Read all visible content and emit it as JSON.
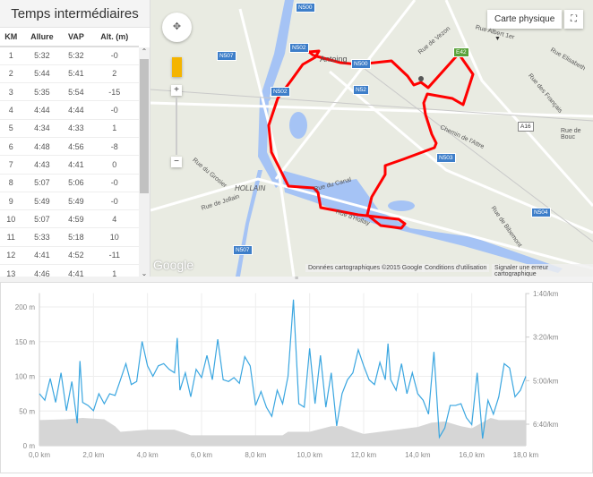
{
  "splits": {
    "title": "Temps intermédiaires",
    "columns": [
      "KM",
      "Allure",
      "VAP",
      "Alt. (m)"
    ],
    "rows": [
      [
        "1",
        "5:32",
        "5:32",
        "-0"
      ],
      [
        "2",
        "5:44",
        "5:41",
        "2"
      ],
      [
        "3",
        "5:35",
        "5:54",
        "-15"
      ],
      [
        "4",
        "4:44",
        "4:44",
        "-0"
      ],
      [
        "5",
        "4:34",
        "4:33",
        "1"
      ],
      [
        "6",
        "4:48",
        "4:56",
        "-8"
      ],
      [
        "7",
        "4:43",
        "4:41",
        "0"
      ],
      [
        "8",
        "5:07",
        "5:06",
        "-0"
      ],
      [
        "9",
        "5:49",
        "5:49",
        "-0"
      ],
      [
        "10",
        "5:07",
        "4:59",
        "4"
      ],
      [
        "11",
        "5:33",
        "5:18",
        "10"
      ],
      [
        "12",
        "4:41",
        "4:52",
        "-11"
      ],
      [
        "13",
        "4:46",
        "4:41",
        "1"
      ]
    ]
  },
  "map": {
    "type_button": "Carte physique",
    "labels": [
      "Antoing",
      "HOLLAIN",
      "Rue du Canal",
      "Rue de Jollain",
      "Rue du Grosier",
      "Rue d'Hollay",
      "Rue de Vezon",
      "Rue Albert 1er",
      "Rue Elisabeth",
      "Rue des Français",
      "Chemin de l'Attre",
      "Rue de Bouc",
      "Rue de Bibemont"
    ],
    "shields": [
      "N500",
      "N502",
      "N507",
      "N52",
      "N503",
      "N504",
      "E42",
      "A16",
      "N507",
      "N502",
      "N500"
    ],
    "attribution": "Données cartographiques ©2015 Google",
    "terms": "Conditions d'utilisation",
    "report": "Signaler une erreur cartographique",
    "logo": "Google",
    "route_color": "#ff0000"
  },
  "chart_data": {
    "type": "area+line",
    "x_ticks": [
      "0,0 km",
      "2,0 km",
      "4,0 km",
      "6,0 km",
      "8,0 km",
      "10,0 km",
      "12,0 km",
      "14,0 km",
      "16,0 km",
      "18,0 km"
    ],
    "y_left_ticks": [
      "0 m",
      "50 m",
      "100 m",
      "150 m",
      "200 m"
    ],
    "y_right_ticks": [
      "1:40/km",
      "3:20/km",
      "5:00/km",
      "6:40/km"
    ],
    "xlim": [
      0,
      18
    ],
    "ylim_left": [
      0,
      220
    ],
    "series": [
      {
        "kind": "altitude_area",
        "color": "#d6d6d6",
        "x": [
          0,
          1,
          1.6,
          2.4,
          2.8,
          3.0,
          4.0,
          5.0,
          5.6,
          6.5,
          8.0,
          9.0,
          9.2,
          10.0,
          10.8,
          11.2,
          11.6,
          12.0,
          13.0,
          14.0,
          14.5,
          15.0,
          15.6,
          16.0,
          16.7,
          17.0,
          18.0
        ],
        "y": [
          37,
          38,
          40,
          38,
          28,
          20,
          23,
          23,
          15,
          15,
          15,
          15,
          20,
          20,
          28,
          28,
          22,
          17,
          22,
          27,
          33,
          35,
          28,
          25,
          40,
          37,
          37
        ]
      },
      {
        "kind": "pace_line_s_per_km",
        "color": "#3aa6e0",
        "x": [
          0,
          0.2,
          0.4,
          0.6,
          0.8,
          1.0,
          1.2,
          1.4,
          1.5,
          1.6,
          1.8,
          2.0,
          2.2,
          2.4,
          2.6,
          2.8,
          3.0,
          3.2,
          3.4,
          3.6,
          3.8,
          4.0,
          4.2,
          4.4,
          4.6,
          4.8,
          5.0,
          5.1,
          5.2,
          5.4,
          5.6,
          5.8,
          6.0,
          6.2,
          6.4,
          6.6,
          6.8,
          7.0,
          7.2,
          7.4,
          7.6,
          7.8,
          8.0,
          8.2,
          8.4,
          8.6,
          8.8,
          9.0,
          9.2,
          9.4,
          9.6,
          9.8,
          10.0,
          10.2,
          10.4,
          10.6,
          10.8,
          11.0,
          11.2,
          11.4,
          11.6,
          11.8,
          12.0,
          12.2,
          12.4,
          12.6,
          12.8,
          12.9,
          13.0,
          13.2,
          13.4,
          13.6,
          13.8,
          14.0,
          14.2,
          14.4,
          14.6,
          14.8,
          15.0,
          15.2,
          15.4,
          15.6,
          15.8,
          16.0,
          16.2,
          16.4,
          16.6,
          16.8,
          17.0,
          17.2,
          17.4,
          17.6,
          17.8,
          18.0
        ],
        "y": [
          330,
          345,
          295,
          350,
          282,
          369,
          302,
          398,
          255,
          350,
          357,
          369,
          330,
          353,
          330,
          334,
          298,
          261,
          309,
          302,
          210,
          266,
          290,
          266,
          261,
          274,
          282,
          202,
          322,
          282,
          337,
          274,
          293,
          242,
          298,
          205,
          298,
          302,
          293,
          306,
          245,
          266,
          357,
          325,
          361,
          382,
          322,
          353,
          290,
          114,
          353,
          361,
          226,
          353,
          242,
          361,
          282,
          404,
          330,
          298,
          282,
          229,
          266,
          298,
          309,
          258,
          298,
          215,
          298,
          322,
          261,
          330,
          282,
          330,
          345,
          377,
          234,
          430,
          409,
          357,
          357,
          353,
          385,
          401,
          282,
          433,
          345,
          377,
          337,
          261,
          271,
          337,
          322,
          290
        ]
      }
    ]
  }
}
